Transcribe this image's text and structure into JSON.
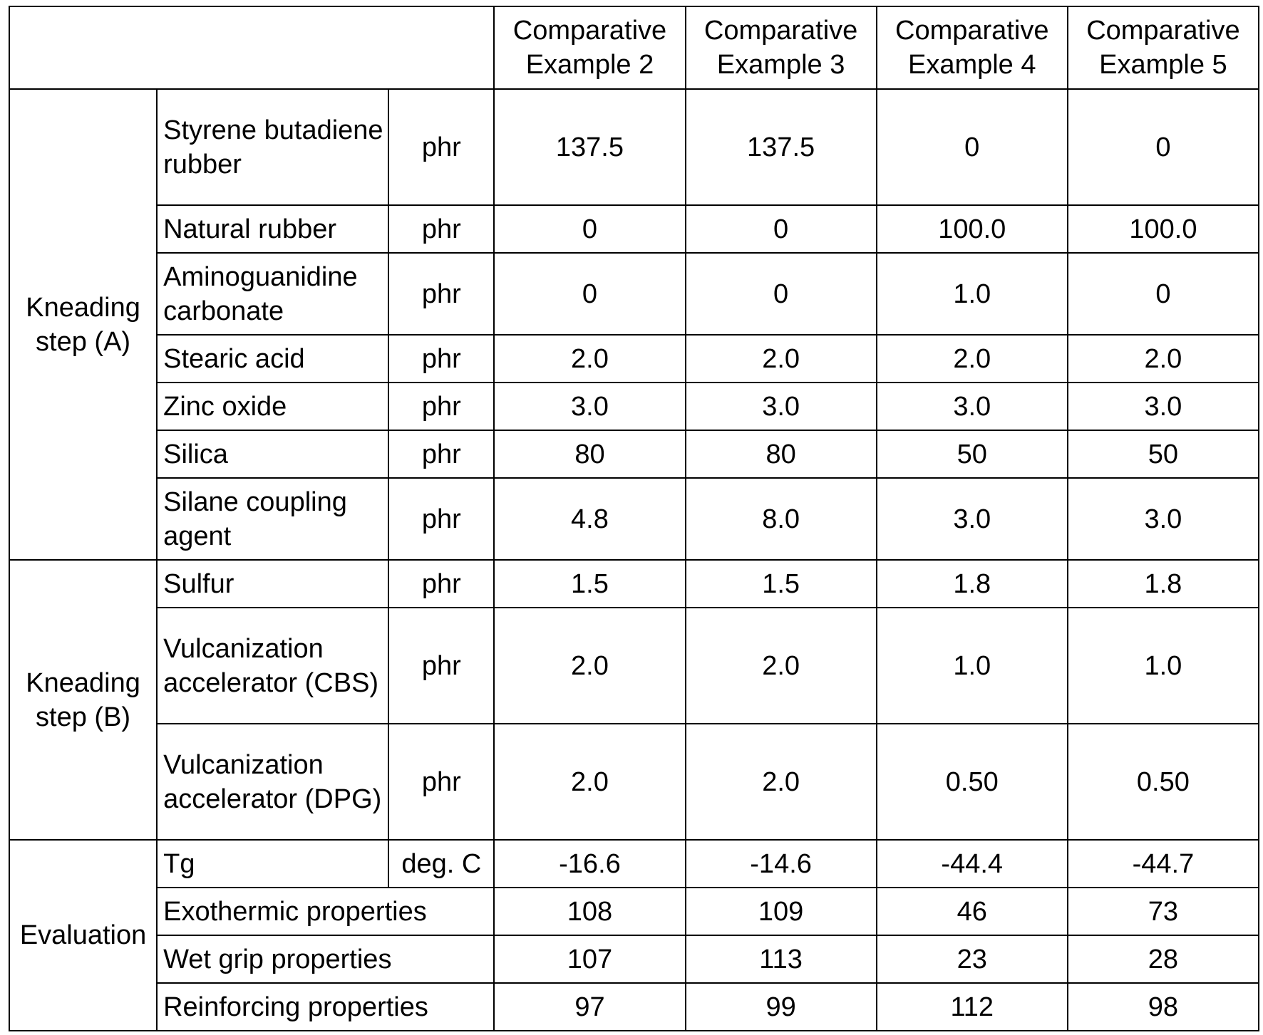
{
  "columns": [
    "Comparative Example 2",
    "Comparative Example 3",
    "Comparative Example 4",
    "Comparative Example 5"
  ],
  "groups": {
    "kneading_a": "Kneading step (A)",
    "kneading_b": "Kneading step (B)",
    "evaluation": "Evaluation"
  },
  "rows": [
    {
      "label": "Styrene butadiene rubber",
      "unit": "phr",
      "values": [
        "137.5",
        "137.5",
        "0",
        "0"
      ]
    },
    {
      "label": "Natural rubber",
      "unit": "phr",
      "values": [
        "0",
        "0",
        "100.0",
        "100.0"
      ]
    },
    {
      "label": "Aminoguanidine carbonate",
      "unit": "phr",
      "values": [
        "0",
        "0",
        "1.0",
        "0"
      ]
    },
    {
      "label": "Stearic acid",
      "unit": "phr",
      "values": [
        "2.0",
        "2.0",
        "2.0",
        "2.0"
      ]
    },
    {
      "label": "Zinc oxide",
      "unit": "phr",
      "values": [
        "3.0",
        "3.0",
        "3.0",
        "3.0"
      ]
    },
    {
      "label": "Silica",
      "unit": "phr",
      "values": [
        "80",
        "80",
        "50",
        "50"
      ]
    },
    {
      "label": "Silane coupling agent",
      "unit": "phr",
      "values": [
        "4.8",
        "8.0",
        "3.0",
        "3.0"
      ]
    },
    {
      "label": "Sulfur",
      "unit": "phr",
      "values": [
        "1.5",
        "1.5",
        "1.8",
        "1.8"
      ]
    },
    {
      "label": "Vulcanization accelerator (CBS)",
      "unit": "phr",
      "values": [
        "2.0",
        "2.0",
        "1.0",
        "1.0"
      ]
    },
    {
      "label": "Vulcanization accelerator (DPG)",
      "unit": "phr",
      "values": [
        "2.0",
        "2.0",
        "0.50",
        "0.50"
      ]
    },
    {
      "label": "Tg",
      "unit": "deg. C",
      "values": [
        "-16.6",
        "-14.6",
        "-44.4",
        "-44.7"
      ]
    },
    {
      "label": "Exothermic properties",
      "values": [
        "108",
        "109",
        "46",
        "73"
      ]
    },
    {
      "label": "Wet grip properties",
      "values": [
        "107",
        "113",
        "23",
        "28"
      ]
    },
    {
      "label": "Reinforcing properties",
      "values": [
        "97",
        "99",
        "112",
        "98"
      ]
    }
  ]
}
